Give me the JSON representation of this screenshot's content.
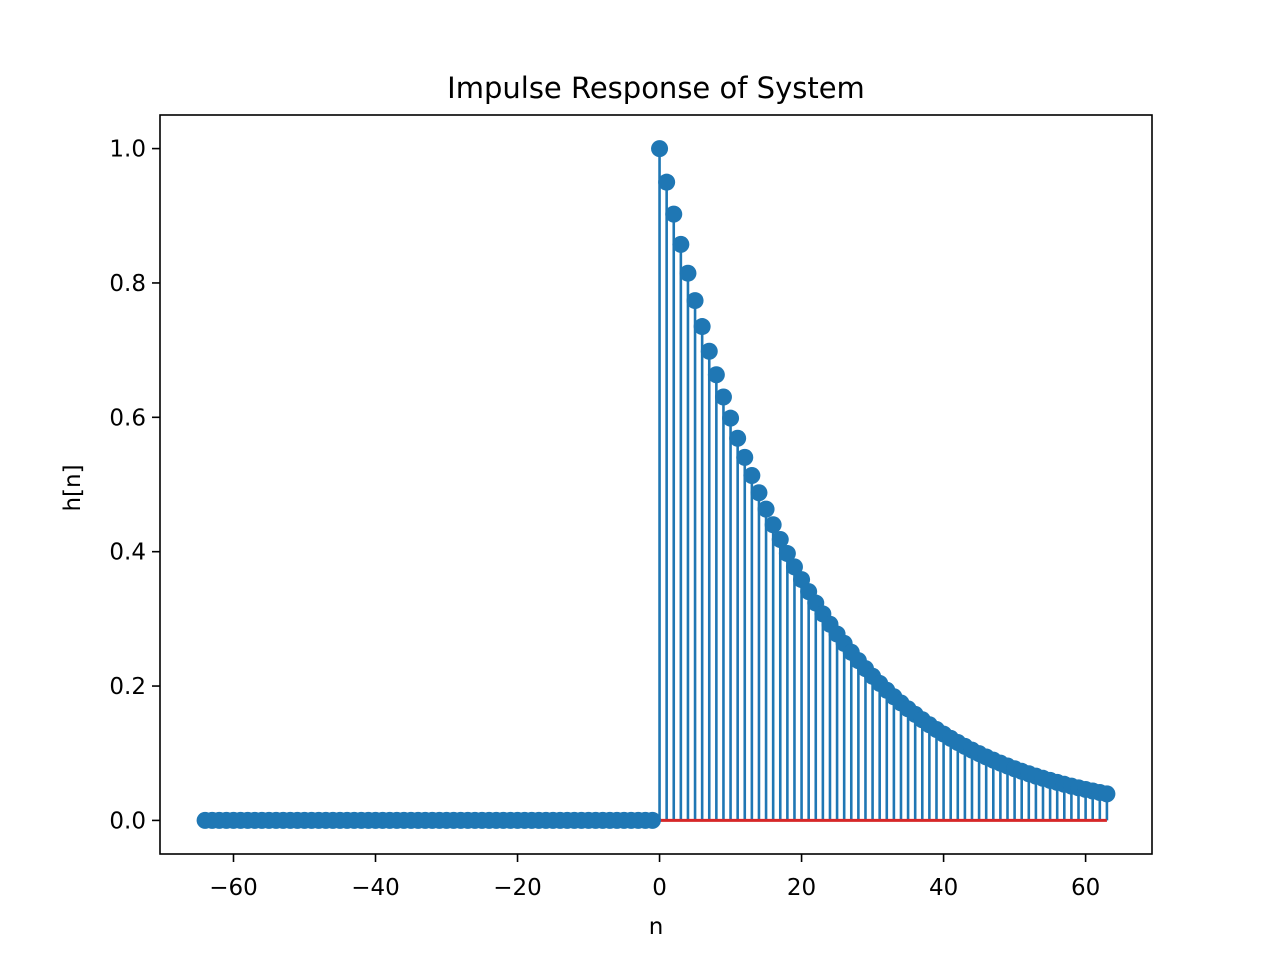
{
  "chart_data": {
    "type": "stem",
    "title": "Impulse Response of System",
    "xlabel": "n",
    "ylabel": "h[n]",
    "xlim": [
      -70.35,
      69.35
    ],
    "ylim": [
      -0.05,
      1.05
    ],
    "xticks": [
      -60,
      -40,
      -20,
      0,
      20,
      40,
      60
    ],
    "xtick_labels": [
      "−60",
      "−40",
      "−20",
      "0",
      "20",
      "40",
      "60"
    ],
    "yticks": [
      0.0,
      0.2,
      0.4,
      0.6,
      0.8,
      1.0
    ],
    "ytick_labels": [
      "0.0",
      "0.2",
      "0.4",
      "0.6",
      "0.8",
      "1.0"
    ],
    "n_range": [
      -64,
      63
    ],
    "response": "h[n] = 0.95^n for n >= 0, 0 for n < 0",
    "decay": 0.95,
    "colors": {
      "stem": "#1f77b4",
      "baseline": "#d62728",
      "axes": "#000000"
    },
    "grid": false,
    "legend": "none"
  }
}
